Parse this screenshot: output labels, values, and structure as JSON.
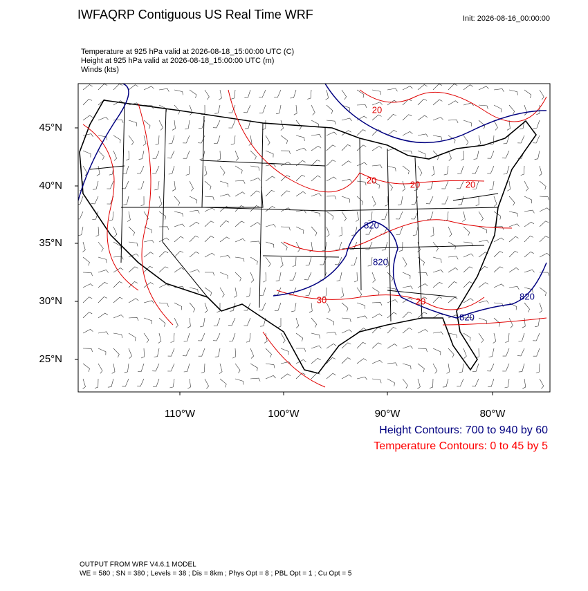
{
  "header": {
    "title": "IWFAQRP Contiguous US Real Time WRF",
    "init": "Init: 2026-08-16_00:00:00"
  },
  "fields": [
    "Temperature at 925 hPa valid at 2026-08-18_15:00:00 UTC   (C)",
    "Height at 925 hPa valid at 2026-08-18_15:00:00 UTC   (m)",
    "Winds   (kts)"
  ],
  "map": {
    "lat_labels": [
      "45°N",
      "40°N",
      "35°N",
      "30°N",
      "25°N"
    ],
    "lon_labels": [
      "110°W",
      "100°W",
      "90°W",
      "80°W"
    ],
    "contour_labels": [
      {
        "text": "20",
        "color": "#e00000"
      },
      {
        "text": "20",
        "color": "#e00000"
      },
      {
        "text": "20",
        "color": "#e00000"
      },
      {
        "text": "20",
        "color": "#e00000"
      },
      {
        "text": "30",
        "color": "#e00000"
      },
      {
        "text": "20",
        "color": "#e00000"
      },
      {
        "text": "820",
        "color": "#000080"
      },
      {
        "text": "820",
        "color": "#000080"
      },
      {
        "text": "820",
        "color": "#000080"
      },
      {
        "text": "820",
        "color": "#000080"
      }
    ]
  },
  "legend": [
    {
      "text": "Height Contours: 700 to 940 by 60",
      "color": "#000080"
    },
    {
      "text": "Temperature Contours: 0 to 45 by 5",
      "color": "#ff0000"
    }
  ],
  "footer": [
    "OUTPUT FROM WRF V4.6.1 MODEL",
    "WE = 580 ; SN = 380 ; Levels = 38 ; Dis = 8km ; Phys Opt = 8 ; PBL Opt = 1 ; Cu Opt = 5"
  ]
}
